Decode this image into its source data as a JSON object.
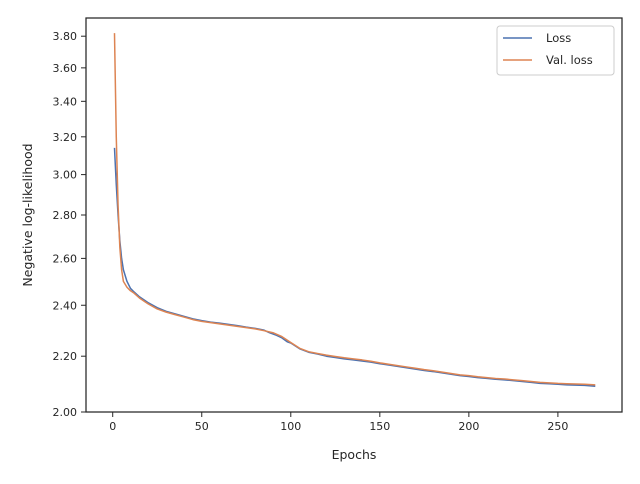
{
  "chart_data": {
    "type": "line",
    "xlabel": "Epochs",
    "ylabel": "Negative log-likelihood",
    "y_scale": "log",
    "xlim": [
      -15,
      286
    ],
    "ylim": [
      2.0,
      3.92
    ],
    "x_ticks": [
      0,
      50,
      100,
      150,
      200,
      250
    ],
    "x_tick_labels": [
      "0",
      "50",
      "100",
      "150",
      "200",
      "250"
    ],
    "y_ticks": [
      2.0,
      2.2,
      2.4,
      2.6,
      2.8,
      3.0,
      3.2,
      3.4,
      3.6,
      3.8
    ],
    "y_tick_labels": [
      "2.00",
      "2.20",
      "2.40",
      "2.60",
      "2.80",
      "3.00",
      "3.20",
      "3.40",
      "3.60",
      "3.80"
    ],
    "grid": false,
    "legend_position": "top-right",
    "series": [
      {
        "name": "Loss",
        "color": "#4c72b0",
        "points": [
          [
            1,
            3.14
          ],
          [
            2,
            2.95
          ],
          [
            3,
            2.8
          ],
          [
            4,
            2.68
          ],
          [
            5,
            2.6
          ],
          [
            6,
            2.55
          ],
          [
            8,
            2.5
          ],
          [
            10,
            2.47
          ],
          [
            12,
            2.455
          ],
          [
            15,
            2.435
          ],
          [
            18,
            2.42
          ],
          [
            20,
            2.41
          ],
          [
            25,
            2.39
          ],
          [
            30,
            2.375
          ],
          [
            35,
            2.365
          ],
          [
            40,
            2.355
          ],
          [
            45,
            2.345
          ],
          [
            50,
            2.338
          ],
          [
            55,
            2.332
          ],
          [
            60,
            2.328
          ],
          [
            65,
            2.323
          ],
          [
            70,
            2.318
          ],
          [
            75,
            2.312
          ],
          [
            80,
            2.307
          ],
          [
            85,
            2.3
          ],
          [
            88,
            2.29
          ],
          [
            92,
            2.28
          ],
          [
            95,
            2.27
          ],
          [
            98,
            2.255
          ],
          [
            100,
            2.25
          ],
          [
            105,
            2.228
          ],
          [
            110,
            2.215
          ],
          [
            115,
            2.208
          ],
          [
            120,
            2.2
          ],
          [
            125,
            2.195
          ],
          [
            130,
            2.19
          ],
          [
            135,
            2.186
          ],
          [
            140,
            2.182
          ],
          [
            145,
            2.178
          ],
          [
            150,
            2.172
          ],
          [
            155,
            2.167
          ],
          [
            160,
            2.162
          ],
          [
            165,
            2.157
          ],
          [
            170,
            2.152
          ],
          [
            175,
            2.147
          ],
          [
            180,
            2.143
          ],
          [
            185,
            2.138
          ],
          [
            190,
            2.133
          ],
          [
            195,
            2.128
          ],
          [
            200,
            2.125
          ],
          [
            205,
            2.121
          ],
          [
            210,
            2.118
          ],
          [
            215,
            2.115
          ],
          [
            220,
            2.113
          ],
          [
            225,
            2.11
          ],
          [
            230,
            2.107
          ],
          [
            235,
            2.104
          ],
          [
            240,
            2.1
          ],
          [
            245,
            2.099
          ],
          [
            250,
            2.097
          ],
          [
            255,
            2.095
          ],
          [
            260,
            2.094
          ],
          [
            265,
            2.093
          ],
          [
            271,
            2.09
          ]
        ]
      },
      {
        "name": "Val. loss",
        "color": "#dd8452",
        "points": [
          [
            1,
            3.82
          ],
          [
            2,
            3.2
          ],
          [
            3,
            2.85
          ],
          [
            4,
            2.65
          ],
          [
            5,
            2.55
          ],
          [
            6,
            2.5
          ],
          [
            8,
            2.475
          ],
          [
            10,
            2.46
          ],
          [
            12,
            2.45
          ],
          [
            15,
            2.43
          ],
          [
            18,
            2.415
          ],
          [
            20,
            2.405
          ],
          [
            25,
            2.385
          ],
          [
            30,
            2.372
          ],
          [
            35,
            2.362
          ],
          [
            40,
            2.352
          ],
          [
            45,
            2.342
          ],
          [
            50,
            2.335
          ],
          [
            55,
            2.33
          ],
          [
            60,
            2.325
          ],
          [
            65,
            2.32
          ],
          [
            70,
            2.315
          ],
          [
            75,
            2.31
          ],
          [
            80,
            2.305
          ],
          [
            85,
            2.298
          ],
          [
            90,
            2.29
          ],
          [
            95,
            2.275
          ],
          [
            100,
            2.252
          ],
          [
            105,
            2.23
          ],
          [
            110,
            2.217
          ],
          [
            115,
            2.21
          ],
          [
            120,
            2.204
          ],
          [
            125,
            2.199
          ],
          [
            130,
            2.194
          ],
          [
            135,
            2.19
          ],
          [
            140,
            2.186
          ],
          [
            145,
            2.181
          ],
          [
            150,
            2.175
          ],
          [
            155,
            2.17
          ],
          [
            160,
            2.165
          ],
          [
            165,
            2.16
          ],
          [
            170,
            2.155
          ],
          [
            175,
            2.15
          ],
          [
            180,
            2.146
          ],
          [
            185,
            2.141
          ],
          [
            190,
            2.136
          ],
          [
            195,
            2.131
          ],
          [
            200,
            2.128
          ],
          [
            205,
            2.124
          ],
          [
            210,
            2.121
          ],
          [
            215,
            2.118
          ],
          [
            220,
            2.116
          ],
          [
            225,
            2.113
          ],
          [
            230,
            2.11
          ],
          [
            235,
            2.107
          ],
          [
            240,
            2.104
          ],
          [
            245,
            2.102
          ],
          [
            250,
            2.1
          ],
          [
            255,
            2.099
          ],
          [
            260,
            2.098
          ],
          [
            265,
            2.097
          ],
          [
            271,
            2.095
          ]
        ]
      }
    ]
  }
}
